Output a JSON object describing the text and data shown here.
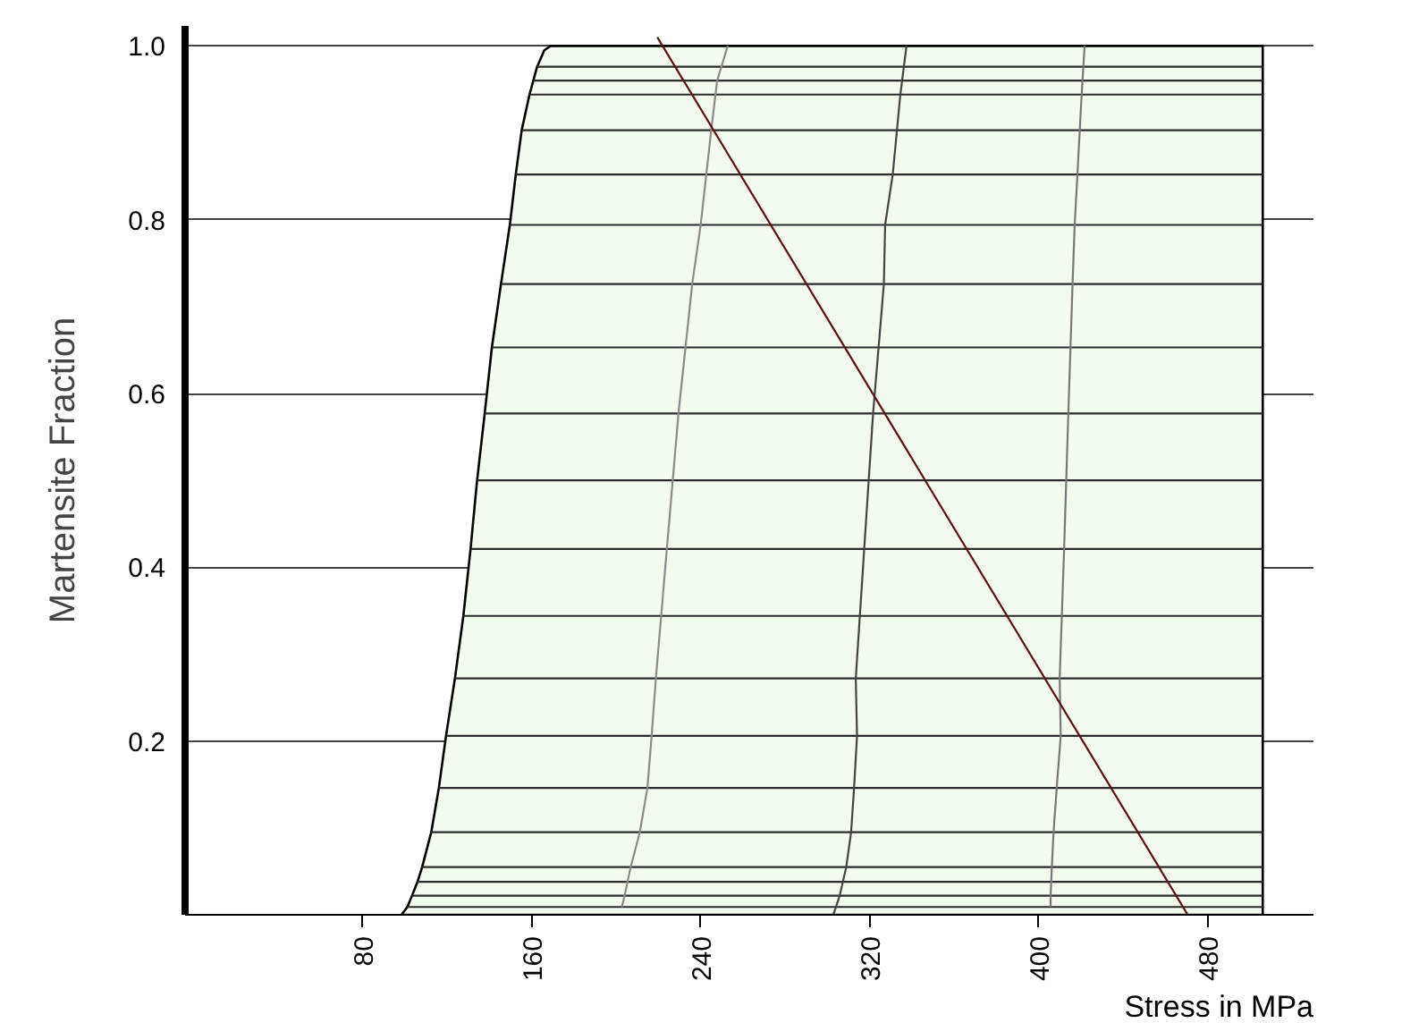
{
  "chart_data": {
    "type": "line",
    "xlabel": "Stress in MPa",
    "ylabel": "Martensite Fraction",
    "xlim": [
      -4,
      530
    ],
    "ylim": [
      0,
      1.023
    ],
    "xticks": [
      80,
      160,
      240,
      320,
      400,
      480
    ],
    "yticks": [
      0.2,
      0.4,
      0.6,
      0.8,
      {
        "value": 1,
        "label": "1.0"
      }
    ],
    "grid": "y",
    "marker": "none",
    "series": [
      {
        "type": "area",
        "color": "#f3faee",
        "x": [
          98.4,
          101.2,
          103.4,
          106,
          108.2,
          112.5,
          116.1,
          119.5,
          123.7,
          127.7,
          131.1,
          134.2,
          137.8,
          141.2,
          145.5,
          149.7,
          152.5,
          155.3,
          159,
          160.8,
          162.6,
          166,
          169,
          506
        ],
        "values": [
          0,
          0.009,
          0.022,
          0.038,
          0.055,
          0.095,
          0.146,
          0.206,
          0.272,
          0.344,
          0.421,
          0.5,
          0.577,
          0.653,
          0.726,
          0.794,
          0.852,
          0.903,
          0.944,
          0.96,
          0.976,
          0.995,
          1,
          1
        ]
      },
      {
        "color": "#2b2b2b",
        "x": [
          101.2,
          506
        ],
        "values": [
          0.009,
          0.009
        ]
      },
      {
        "color": "#2b2b2b",
        "x": [
          103.4,
          506
        ],
        "values": [
          0.022,
          0.022
        ]
      },
      {
        "color": "#2b2b2b",
        "x": [
          106,
          506
        ],
        "values": [
          0.038,
          0.038
        ]
      },
      {
        "color": "#2b2b2b",
        "x": [
          108.2,
          506
        ],
        "values": [
          0.055,
          0.055
        ]
      },
      {
        "color": "#2b2b2b",
        "x": [
          112.5,
          506
        ],
        "values": [
          0.095,
          0.095
        ]
      },
      {
        "color": "#2b2b2b",
        "x": [
          116.1,
          506
        ],
        "values": [
          0.146,
          0.146
        ]
      },
      {
        "color": "#2b2b2b",
        "x": [
          119.5,
          506
        ],
        "values": [
          0.206,
          0.206
        ]
      },
      {
        "color": "#2b2b2b",
        "x": [
          123.7,
          506
        ],
        "values": [
          0.272,
          0.272
        ]
      },
      {
        "color": "#2b2b2b",
        "x": [
          127.7,
          506
        ],
        "values": [
          0.344,
          0.344
        ]
      },
      {
        "color": "#2b2b2b",
        "x": [
          131.1,
          506
        ],
        "values": [
          0.421,
          0.421
        ]
      },
      {
        "color": "#2b2b2b",
        "x": [
          134.2,
          506
        ],
        "values": [
          0.5,
          0.5
        ]
      },
      {
        "color": "#2b2b2b",
        "x": [
          137.8,
          506
        ],
        "values": [
          0.577,
          0.577
        ]
      },
      {
        "color": "#2b2b2b",
        "x": [
          141.2,
          506
        ],
        "values": [
          0.653,
          0.653
        ]
      },
      {
        "color": "#2b2b2b",
        "x": [
          145.5,
          506
        ],
        "values": [
          0.726,
          0.726
        ]
      },
      {
        "color": "#2b2b2b",
        "x": [
          149.7,
          506
        ],
        "values": [
          0.794,
          0.794
        ]
      },
      {
        "color": "#2b2b2b",
        "x": [
          152.5,
          506
        ],
        "values": [
          0.852,
          0.852
        ]
      },
      {
        "color": "#2b2b2b",
        "x": [
          155.3,
          506
        ],
        "values": [
          0.903,
          0.903
        ]
      },
      {
        "color": "#2b2b2b",
        "x": [
          159,
          506
        ],
        "values": [
          0.944,
          0.944
        ]
      },
      {
        "color": "#2b2b2b",
        "x": [
          160.8,
          506
        ],
        "values": [
          0.96,
          0.96
        ]
      },
      {
        "color": "#2b2b2b",
        "x": [
          162.6,
          506
        ],
        "values": [
          0.976,
          0.976
        ]
      },
      {
        "color": "#8a8a8a",
        "x": [
          202.7,
          204,
          206.9,
          211.2,
          214.8,
          216.8,
          218.8,
          224,
          229.5,
          236,
          240,
          245,
          247.8,
          252.8
        ],
        "values": [
          0.009,
          0.022,
          0.055,
          0.095,
          0.146,
          0.206,
          0.272,
          0.421,
          0.577,
          0.726,
          0.794,
          0.903,
          0.96,
          1
        ]
      },
      {
        "color": "#444444",
        "x": [
          302.8,
          305.8,
          308.9,
          311.2,
          312.6,
          314,
          313.4,
          317.4,
          321.6,
          326.7,
          327.3,
          330.9,
          334.5,
          337.4
        ],
        "values": [
          0,
          0.022,
          0.055,
          0.095,
          0.146,
          0.206,
          0.272,
          0.421,
          0.577,
          0.726,
          0.794,
          0.852,
          0.944,
          1
        ]
      },
      {
        "color": "#777777",
        "x": [
          405.6,
          405.6,
          406.2,
          407,
          408.5,
          410.4,
          409.9,
          412,
          414,
          416,
          417,
          418.3,
          420.3,
          421.7
        ],
        "values": [
          0.009,
          0.022,
          0.055,
          0.095,
          0.146,
          0.206,
          0.272,
          0.421,
          0.577,
          0.726,
          0.794,
          0.852,
          0.944,
          1
        ]
      },
      {
        "color": "#5c1010",
        "x": [
          219.5,
          470.5
        ],
        "values": [
          1.01,
          0
        ]
      }
    ]
  }
}
